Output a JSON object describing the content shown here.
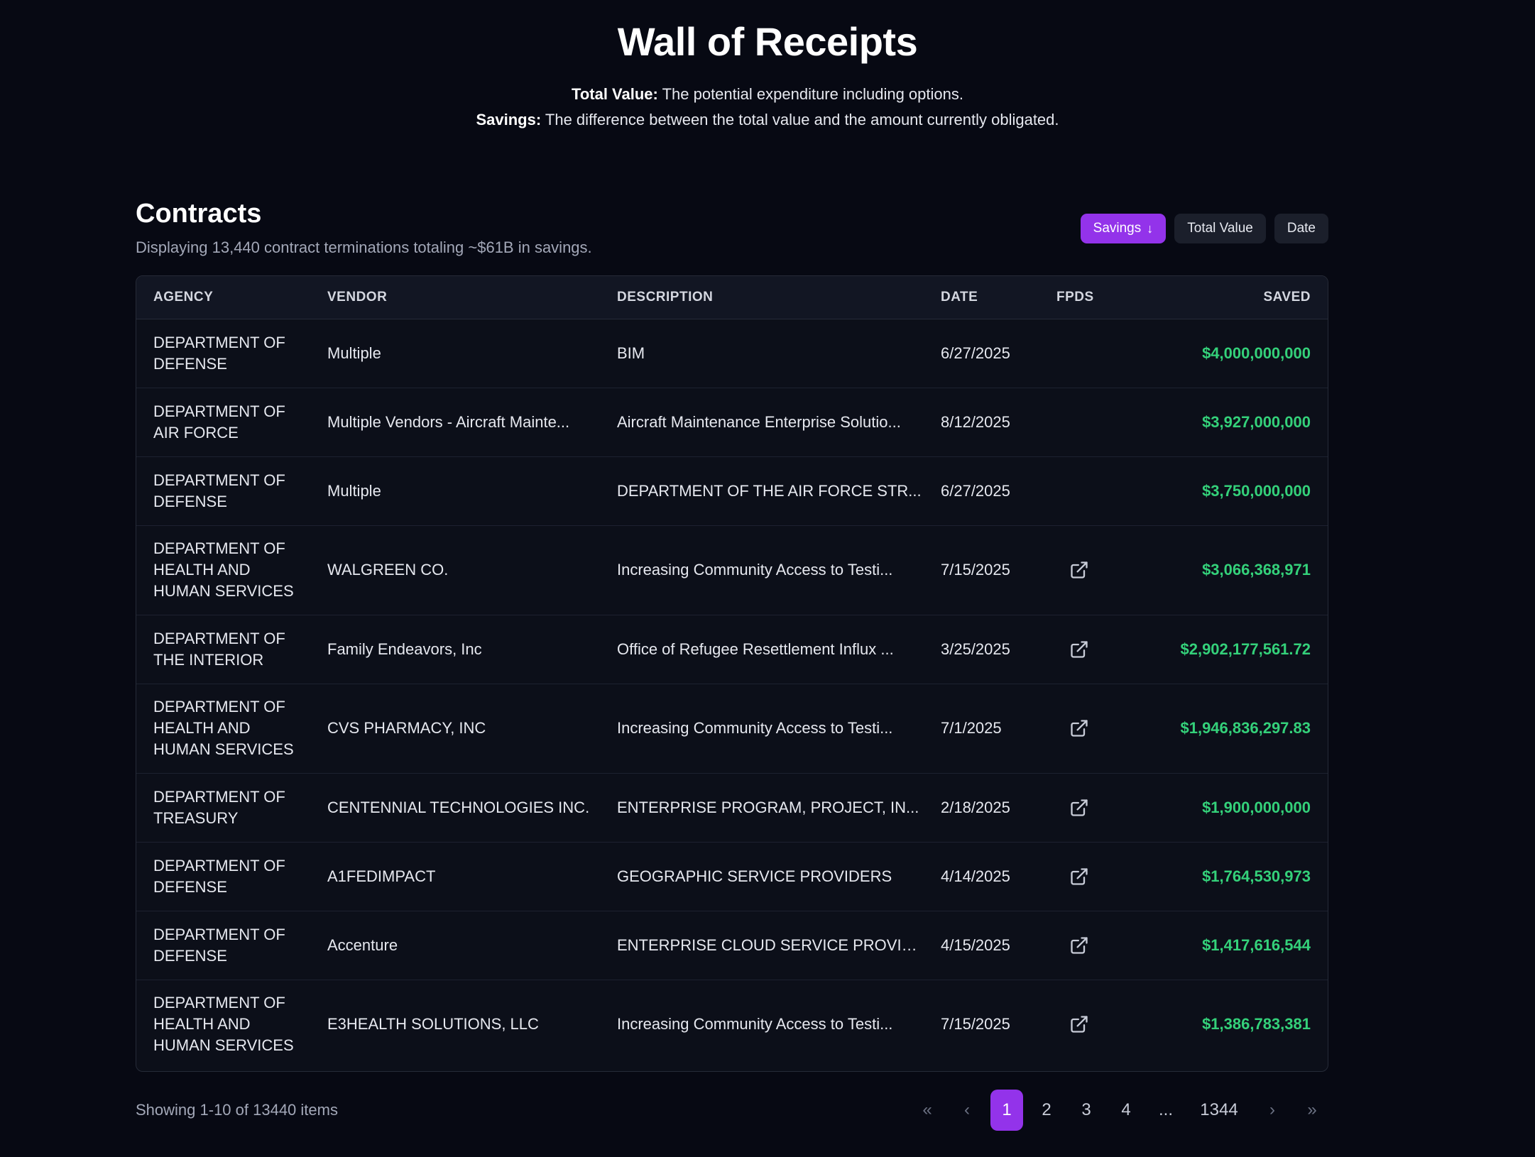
{
  "header": {
    "title": "Wall of Receipts",
    "total_value_term": "Total Value:",
    "total_value_def": "The potential expenditure including options.",
    "savings_term": "Savings:",
    "savings_def": "The difference between the total value and the amount currently obligated."
  },
  "contracts": {
    "title": "Contracts",
    "subtitle": "Displaying 13,440 contract terminations totaling ~$61B in savings.",
    "sort_buttons": [
      {
        "label": "Savings",
        "active": true,
        "icon": "arrow-down-icon"
      },
      {
        "label": "Total Value",
        "active": false
      },
      {
        "label": "Date",
        "active": false
      }
    ],
    "columns": [
      "AGENCY",
      "VENDOR",
      "DESCRIPTION",
      "DATE",
      "FPDS",
      "SAVED"
    ],
    "rows": [
      {
        "agency": "DEPARTMENT OF DEFENSE",
        "vendor": "Multiple",
        "description": "BIM",
        "date": "6/27/2025",
        "fpds": false,
        "saved": "$4,000,000,000"
      },
      {
        "agency": "DEPARTMENT OF AIR FORCE",
        "vendor": "Multiple Vendors - Aircraft Mainte...",
        "description": "Aircraft Maintenance Enterprise Solutio...",
        "date": "8/12/2025",
        "fpds": false,
        "saved": "$3,927,000,000"
      },
      {
        "agency": "DEPARTMENT OF DEFENSE",
        "vendor": "Multiple",
        "description": "DEPARTMENT OF THE AIR FORCE STR...",
        "date": "6/27/2025",
        "fpds": false,
        "saved": "$3,750,000,000"
      },
      {
        "agency": "DEPARTMENT OF HEALTH AND HUMAN SERVICES",
        "vendor": "WALGREEN CO.",
        "description": "Increasing Community Access to Testi...",
        "date": "7/15/2025",
        "fpds": true,
        "saved": "$3,066,368,971"
      },
      {
        "agency": "DEPARTMENT OF THE INTERIOR",
        "vendor": "Family Endeavors, Inc",
        "description": "Office of Refugee Resettlement Influx ...",
        "date": "3/25/2025",
        "fpds": true,
        "saved": "$2,902,177,561.72"
      },
      {
        "agency": "DEPARTMENT OF HEALTH AND HUMAN SERVICES",
        "vendor": "CVS PHARMACY, INC",
        "description": "Increasing Community Access to Testi...",
        "date": "7/1/2025",
        "fpds": true,
        "saved": "$1,946,836,297.83"
      },
      {
        "agency": "DEPARTMENT OF TREASURY",
        "vendor": "CENTENNIAL TECHNOLOGIES INC.",
        "description": "ENTERPRISE PROGRAM, PROJECT, IN...",
        "date": "2/18/2025",
        "fpds": true,
        "saved": "$1,900,000,000"
      },
      {
        "agency": "DEPARTMENT OF DEFENSE",
        "vendor": "A1FEDIMPACT",
        "description": "GEOGRAPHIC SERVICE PROVIDERS",
        "date": "4/14/2025",
        "fpds": true,
        "saved": "$1,764,530,973"
      },
      {
        "agency": "DEPARTMENT OF DEFENSE",
        "vendor": "Accenture",
        "description": "ENTERPRISE CLOUD SERVICE PROVID...",
        "date": "4/15/2025",
        "fpds": true,
        "saved": "$1,417,616,544"
      },
      {
        "agency": "DEPARTMENT OF HEALTH AND HUMAN SERVICES",
        "vendor": "E3HEALTH SOLUTIONS, LLC",
        "description": "Increasing Community Access to Testi...",
        "date": "7/15/2025",
        "fpds": true,
        "saved": "$1,386,783,381"
      }
    ]
  },
  "pagination": {
    "showing": "Showing 1-10 of 13440 items",
    "first": "«",
    "prev": "‹",
    "pages": [
      "1",
      "2",
      "3",
      "4"
    ],
    "ellipsis": "...",
    "last_page": "1344",
    "next": "›",
    "last": "»",
    "current": "1"
  },
  "colors": {
    "accent": "#9333ea",
    "saved_green": "#34d17a",
    "background": "#070913"
  }
}
